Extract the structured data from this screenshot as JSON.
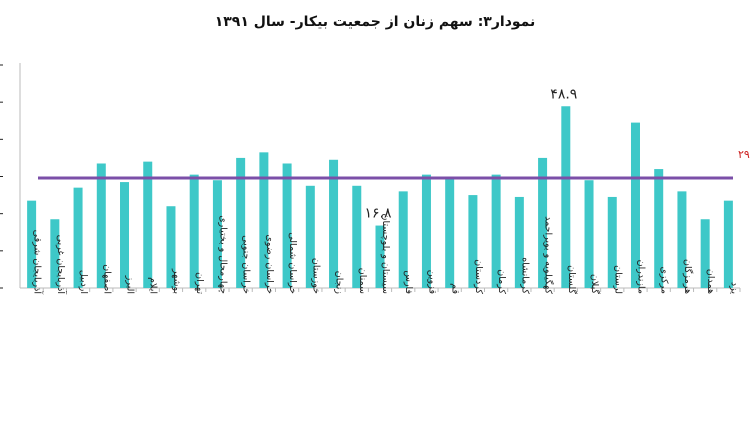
{
  "chart_data": {
    "type": "bar",
    "title": "نمودار۳: سهم زنان از جمعیت بیکار- سال ۱۳۹۱",
    "xlabel": "",
    "ylabel": "",
    "ylim": [
      0,
      60
    ],
    "categories": [
      "آذربایجان شرقی",
      "آذربایجان غربی",
      "اردبیل",
      "اصفهان",
      "البرز",
      "ایلام",
      "بوشهر",
      "تهران",
      "چهارمحال و بختیاری",
      "خراسان جنوبی",
      "خراسان رضوی",
      "خراسان شمالی",
      "خوزستان",
      "زنجان",
      "سمنان",
      "سیستان و بلوچستان",
      "فارس",
      "قزوین",
      "قم",
      "کردستان",
      "کرمان",
      "کرمانشاه",
      "کهگیلویه و بویراحمد",
      "گلستان",
      "گیلان",
      "لرستان",
      "مازندران",
      "مرکزی",
      "هرمزگان",
      "همدان",
      "یزد"
    ],
    "values": [
      23.5,
      18.5,
      27,
      33.5,
      28.5,
      34,
      22,
      30.5,
      29,
      35,
      36.5,
      33.5,
      27.5,
      34.5,
      27.5,
      16.8,
      26,
      30.5,
      30,
      25,
      30.5,
      24.5,
      35,
      48.9,
      29,
      24.5,
      44.5,
      32,
      26,
      18.5,
      23.5
    ],
    "reference_line": {
      "value": 29.6,
      "label": "کشوری ۲۹.۶"
    },
    "annotations": [
      {
        "category": "سیستان و بلوچستان",
        "text": "۱۶.۸"
      },
      {
        "category": "گلستان",
        "text": "۴۸.۹"
      }
    ],
    "colors": {
      "bar": "#3ec8c8",
      "reference": "#7b4fa8",
      "reference_label": "#cc1f1f"
    }
  }
}
